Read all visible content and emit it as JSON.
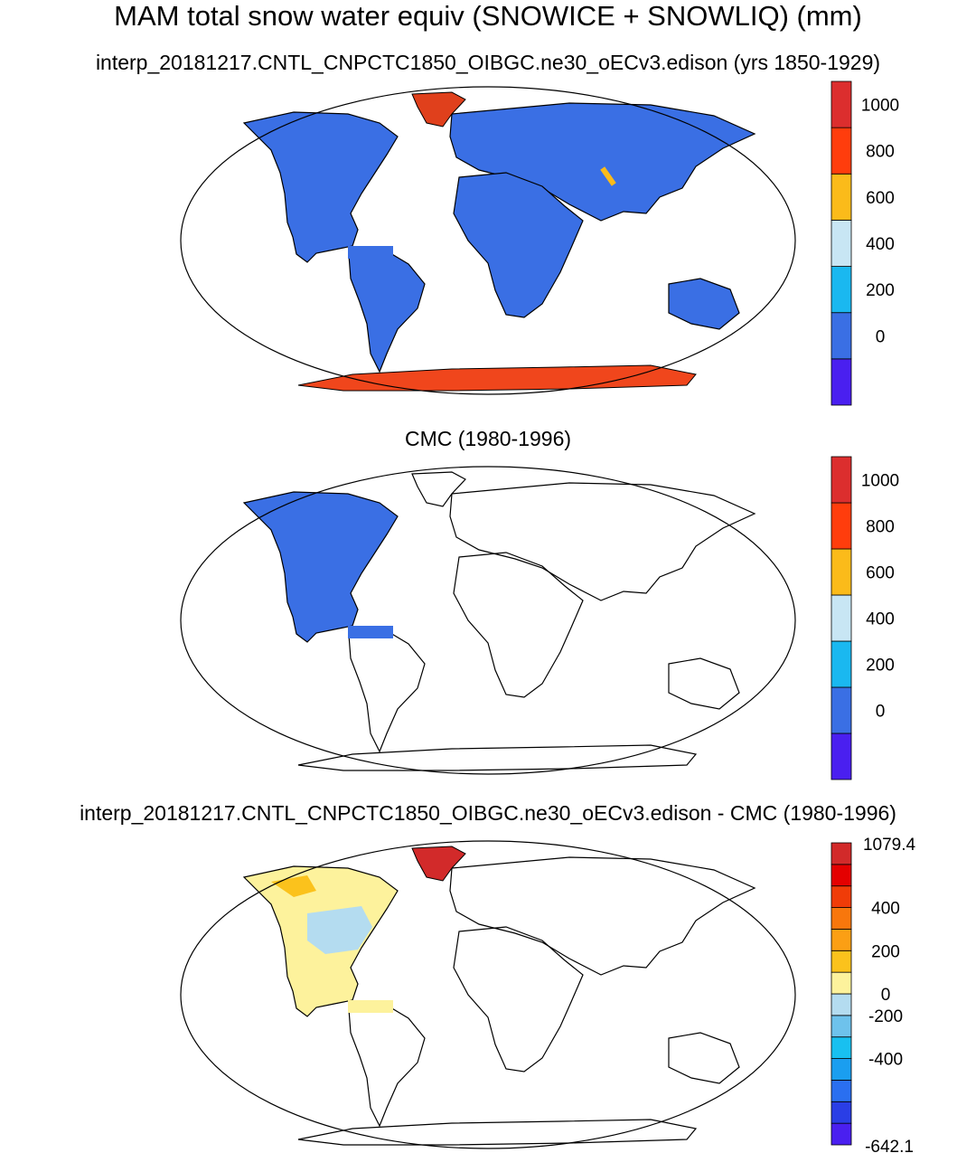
{
  "main_title": "MAM total snow water equiv (SNOWICE + SNOWLIQ) (mm)",
  "chart_data": [
    {
      "type": "heatmap",
      "title": "interp_20181217.CNTL_CNPCTC1850_OIBGC.ne30_oECv3.edison (yrs 1850-1929)",
      "colorbar": {
        "levels": [
          0,
          200,
          400,
          600,
          800,
          1000
        ],
        "labels": [
          "0",
          "200",
          "400",
          "600",
          "800",
          "1000"
        ],
        "colors": [
          "#4a1ff0",
          "#3a6fe4",
          "#1ab8f0",
          "#c8e6f4",
          "#fbbb1a",
          "#ff3d0c",
          "#dc2e2e"
        ]
      },
      "regions": [
        {
          "name": "most land",
          "value_range": [
            0,
            200
          ]
        },
        {
          "name": "Greenland",
          "value_range": [
            800,
            1000
          ]
        },
        {
          "name": "Antarctica",
          "value_range": [
            800,
            1000
          ]
        }
      ]
    },
    {
      "type": "heatmap",
      "title": "CMC (1980-1996)",
      "colorbar": {
        "levels": [
          0,
          200,
          400,
          600,
          800,
          1000
        ],
        "labels": [
          "0",
          "200",
          "400",
          "600",
          "800",
          "1000"
        ],
        "colors": [
          "#4a1ff0",
          "#3a6fe4",
          "#1ab8f0",
          "#c8e6f4",
          "#fbbb1a",
          "#ff3d0c",
          "#dc2e2e"
        ]
      },
      "regions": [
        {
          "name": "North America",
          "value_range": [
            0,
            200
          ]
        }
      ]
    },
    {
      "type": "heatmap",
      "title": "interp_20181217.CNTL_CNPCTC1850_OIBGC.ne30_oECv3.edison - CMC (1980-1996)",
      "colorbar": {
        "min_label": "-642.1",
        "max_label": "1079.4",
        "labels": [
          "-400",
          "-200",
          "0",
          "200",
          "400"
        ],
        "colors": [
          "#4a1ff0",
          "#2a3ee6",
          "#2a6ff0",
          "#1a9ef0",
          "#18c0f0",
          "#6ec2ec",
          "#b4dcf0",
          "#fdf29c",
          "#fbc21c",
          "#fb9f14",
          "#f8770c",
          "#f03c08",
          "#e40000",
          "#d22a2a"
        ]
      },
      "regions": [
        {
          "name": "North America",
          "value_range": [
            0,
            200
          ]
        },
        {
          "name": "Greenland",
          "value_range": [
            400,
            1079.4
          ]
        }
      ]
    }
  ]
}
